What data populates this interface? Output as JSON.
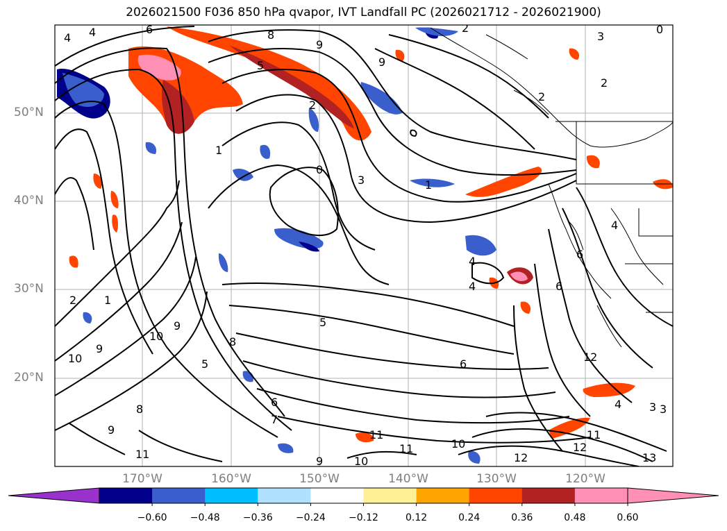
{
  "title": "2026021500 F036 850 hPa qvapor, IVT Landfall PC (2026021712 - 2026021900)",
  "axes": {
    "lat_labels": [
      "50°N",
      "40°N",
      "30°N",
      "20°N"
    ],
    "lon_labels": [
      "170°W",
      "160°W",
      "150°W",
      "140°W",
      "130°W",
      "120°W"
    ]
  },
  "colorbar": {
    "tick_labels": [
      "−0.60",
      "−0.48",
      "−0.36",
      "−0.24",
      "−0.12",
      "0.12",
      "0.24",
      "0.36",
      "0.48",
      "0.60"
    ],
    "under_color": "#9932cc",
    "over_color": "#ff8fb4",
    "colors": [
      "#00008b",
      "#3a5fcd",
      "#00bfff",
      "#b0e2ff",
      "#ffffff",
      "#fff096",
      "#ffa500",
      "#ff4500",
      "#b22222",
      "#ff8fb4"
    ]
  },
  "map_data": {
    "contour_labels": [
      "4",
      "6",
      "8",
      "9",
      "9",
      "2",
      "3",
      "3",
      "4",
      "5",
      "1",
      "2",
      "0",
      "1",
      "2",
      "5",
      "2",
      "1",
      "8",
      "9",
      "10",
      "10",
      "9",
      "5",
      "6",
      "4",
      "4",
      "6",
      "6",
      "7",
      "9",
      "11",
      "11",
      "11",
      "9",
      "10",
      "12",
      "12",
      "11",
      "4",
      "3",
      "10",
      "2",
      "0",
      "3",
      "4",
      "6",
      "8",
      "12",
      "13"
    ],
    "colors": {
      "coastline": "#000000",
      "gridline": "#b0b0b0",
      "contour": "#000000"
    }
  }
}
